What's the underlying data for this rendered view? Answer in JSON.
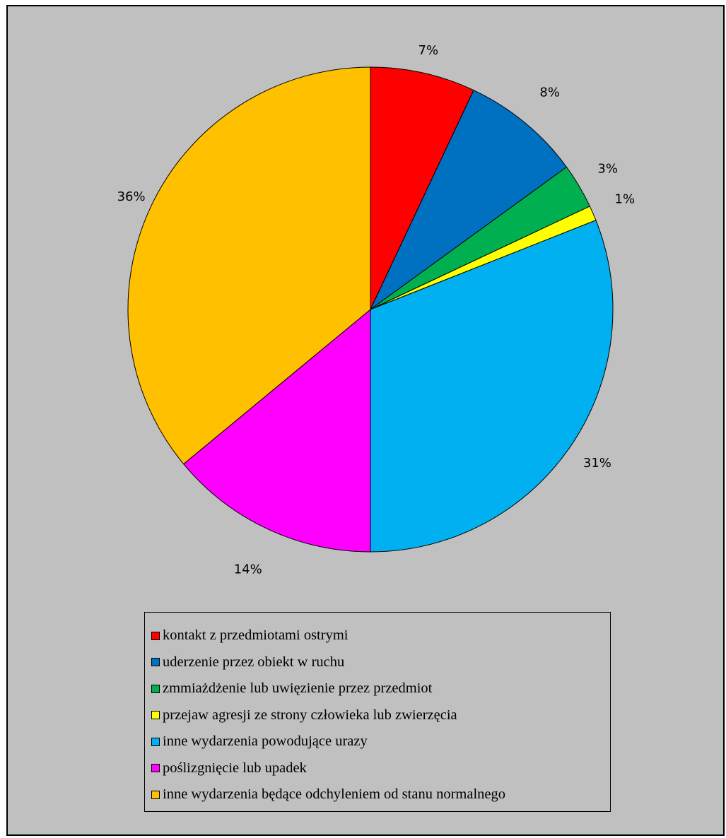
{
  "chart_data": {
    "type": "pie",
    "title": "",
    "start_angle": "12 o'clock, clockwise",
    "legend_position": "bottom",
    "slices": [
      {
        "label": "kontakt z przedmiotami ostrymi",
        "value": 7,
        "display": "7%",
        "color": "#ff0000"
      },
      {
        "label": "uderzenie przez obiekt w ruchu",
        "value": 8,
        "display": "8%",
        "color": "#0070c0"
      },
      {
        "label": "zmmiażdżenie lub uwięzienie przez przedmiot",
        "value": 3,
        "display": "3%",
        "color": "#00b050"
      },
      {
        "label": "przejaw agresji ze strony człowieka lub zwierzęcia",
        "value": 1,
        "display": "1%",
        "color": "#ffff00"
      },
      {
        "label": "inne wydarzenia powodujące urazy",
        "value": 31,
        "display": "31%",
        "color": "#00b0f0"
      },
      {
        "label": "poślizgnięcie lub upadek",
        "value": 14,
        "display": "14%",
        "color": "#ff00ff"
      },
      {
        "label": "inne wydarzenia będące odchyleniem od stanu normalnego",
        "value": 36,
        "display": "36%",
        "color": "#ffc000"
      }
    ]
  },
  "colors": {
    "background": "#c0c0c0",
    "border": "#000000"
  }
}
